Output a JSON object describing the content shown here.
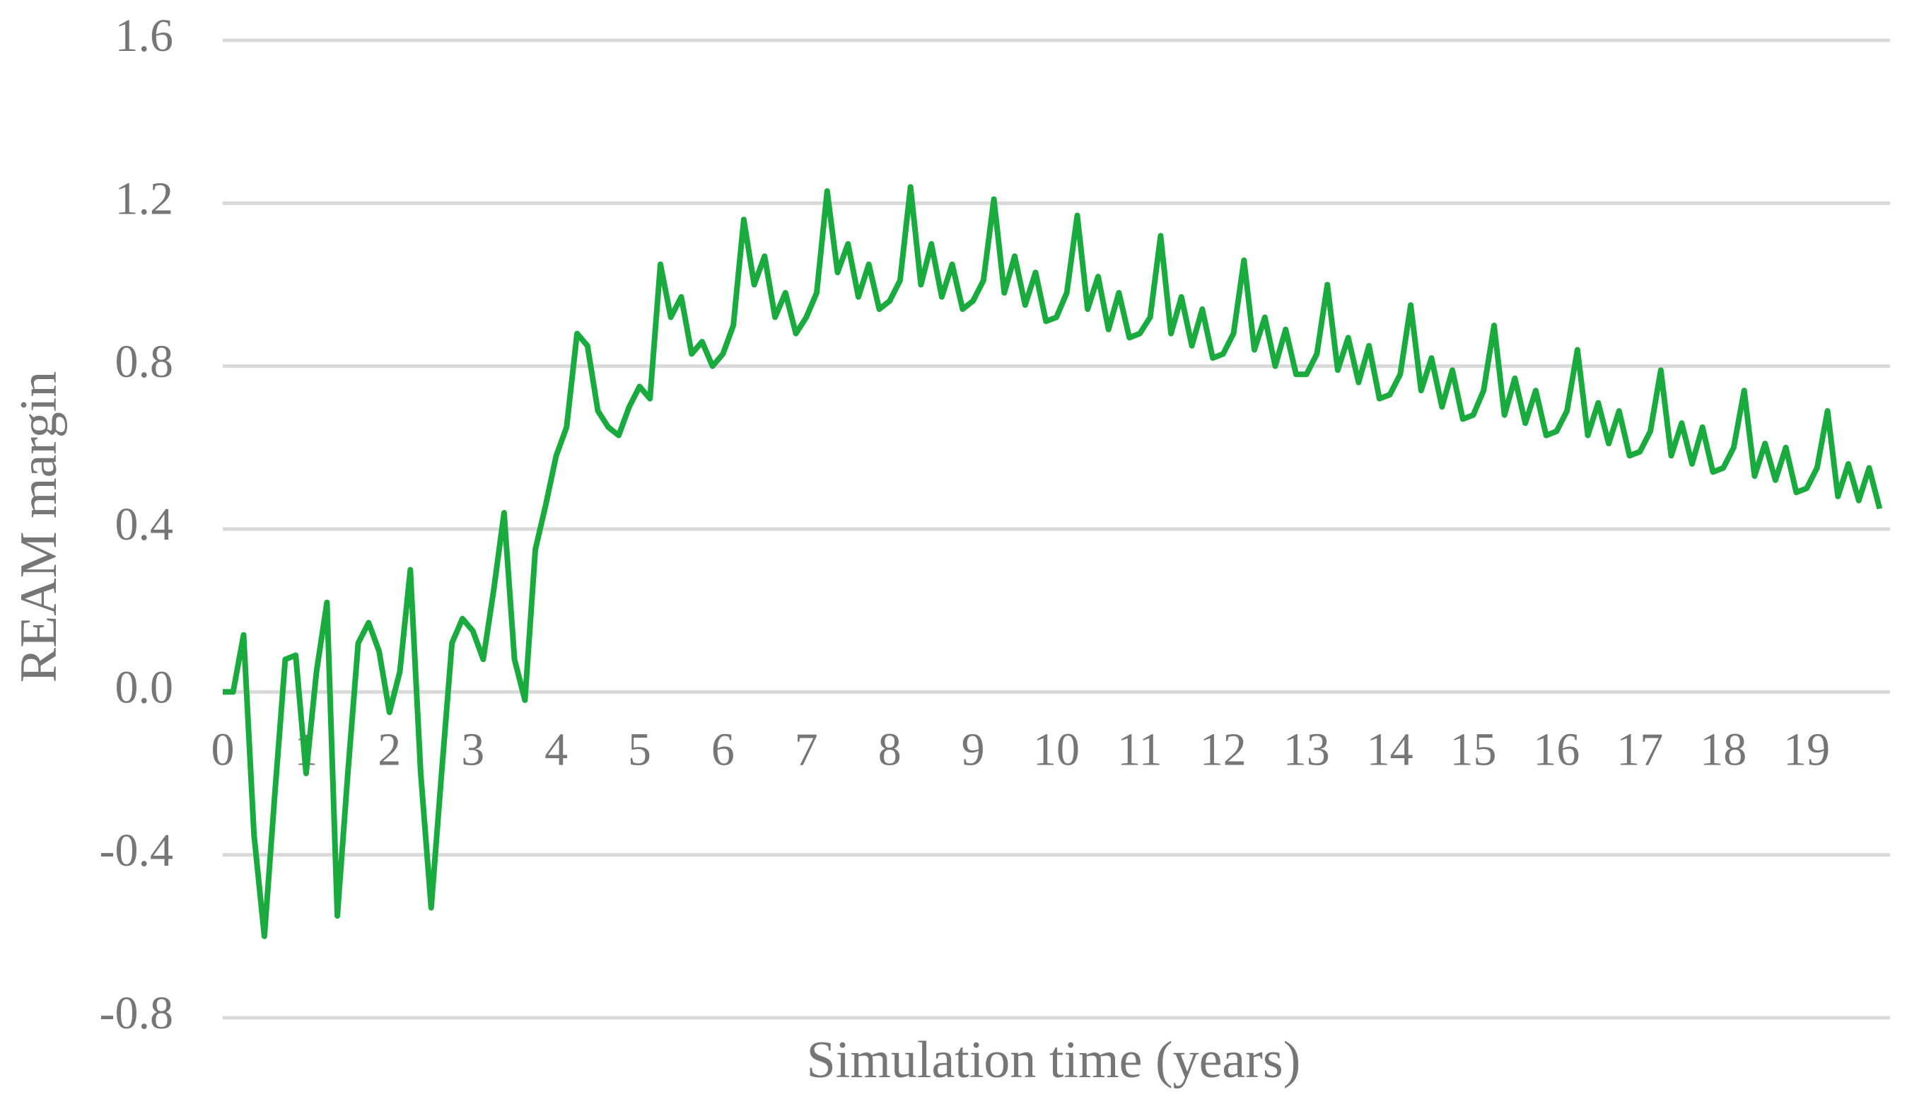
{
  "chart_data": {
    "type": "line",
    "xlabel": "Simulation time (years)",
    "ylabel": "REAM margin",
    "xlim": [
      0,
      20
    ],
    "ylim": [
      -0.8,
      1.6
    ],
    "xticks": [
      0,
      1,
      2,
      3,
      4,
      5,
      6,
      7,
      8,
      9,
      10,
      11,
      12,
      13,
      14,
      15,
      16,
      17,
      18,
      19
    ],
    "yticks": [
      {
        "value": -0.8,
        "label": "-0.8"
      },
      {
        "value": -0.4,
        "label": "-0.4"
      },
      {
        "value": 0,
        "label": "0.0"
      },
      {
        "value": 0.4,
        "label": "0.4"
      },
      {
        "value": 0.8,
        "label": "0.8"
      },
      {
        "value": 1.2,
        "label": "1.2"
      },
      {
        "value": 1.6,
        "label": "1.6"
      }
    ],
    "grid": true,
    "x": [
      0,
      0.125,
      0.25,
      0.375,
      0.5,
      0.625,
      0.75,
      0.875,
      1,
      1.125,
      1.25,
      1.375,
      1.5,
      1.625,
      1.75,
      1.875,
      2,
      2.125,
      2.25,
      2.375,
      2.5,
      2.625,
      2.75,
      2.875,
      3,
      3.125,
      3.25,
      3.375,
      3.5,
      3.625,
      3.75,
      3.875,
      4,
      4.125,
      4.25,
      4.375,
      4.5,
      4.625,
      4.75,
      4.875,
      5,
      5.125,
      5.25,
      5.375,
      5.5,
      5.625,
      5.75,
      5.875,
      6,
      6.125,
      6.25,
      6.375,
      6.5,
      6.625,
      6.75,
      6.875,
      7,
      7.125,
      7.25,
      7.375,
      7.5,
      7.625,
      7.75,
      7.875,
      8,
      8.125,
      8.25,
      8.375,
      8.5,
      8.625,
      8.75,
      8.875,
      9,
      9.125,
      9.25,
      9.375,
      9.5,
      9.625,
      9.75,
      9.875,
      10,
      10.125,
      10.25,
      10.375,
      10.5,
      10.625,
      10.75,
      10.875,
      11,
      11.125,
      11.25,
      11.375,
      11.5,
      11.625,
      11.75,
      11.875,
      12,
      12.125,
      12.25,
      12.375,
      12.5,
      12.625,
      12.75,
      12.875,
      13,
      13.125,
      13.25,
      13.375,
      13.5,
      13.625,
      13.75,
      13.875,
      14,
      14.125,
      14.25,
      14.375,
      14.5,
      14.625,
      14.75,
      14.875,
      15,
      15.125,
      15.25,
      15.375,
      15.5,
      15.625,
      15.75,
      15.875,
      16,
      16.125,
      16.25,
      16.375,
      16.5,
      16.625,
      16.75,
      16.875,
      17,
      17.125,
      17.25,
      17.375,
      17.5,
      17.625,
      17.75,
      17.875,
      18,
      18.125,
      18.25,
      18.375,
      18.5,
      18.625,
      18.75,
      18.875,
      19,
      19.125,
      19.25,
      19.375,
      19.5,
      19.625,
      19.75,
      19.875
    ],
    "series": [
      {
        "name": "REAM margin",
        "color": "#19ab3e",
        "values": [
          0,
          0,
          0.14,
          -0.35,
          -0.6,
          -0.25,
          0.08,
          0.09,
          -0.2,
          0.05,
          0.22,
          -0.55,
          -0.2,
          0.12,
          0.17,
          0.1,
          -0.05,
          0.05,
          0.3,
          -0.2,
          -0.53,
          -0.2,
          0.12,
          0.18,
          0.15,
          0.08,
          0.25,
          0.44,
          0.08,
          -0.02,
          0.35,
          0.46,
          0.58,
          0.65,
          0.88,
          0.85,
          0.69,
          0.65,
          0.63,
          0.7,
          0.75,
          0.72,
          1.05,
          0.92,
          0.97,
          0.83,
          0.86,
          0.8,
          0.83,
          0.9,
          1.16,
          1.0,
          1.07,
          0.92,
          0.98,
          0.88,
          0.92,
          0.98,
          1.23,
          1.03,
          1.1,
          0.97,
          1.05,
          0.94,
          0.96,
          1.01,
          1.24,
          1.0,
          1.1,
          0.97,
          1.05,
          0.94,
          0.96,
          1.01,
          1.21,
          0.98,
          1.07,
          0.95,
          1.03,
          0.91,
          0.92,
          0.98,
          1.17,
          0.94,
          1.02,
          0.89,
          0.98,
          0.87,
          0.88,
          0.92,
          1.12,
          0.88,
          0.97,
          0.85,
          0.94,
          0.82,
          0.83,
          0.88,
          1.06,
          0.84,
          0.92,
          0.8,
          0.89,
          0.78,
          0.78,
          0.83,
          1.0,
          0.79,
          0.87,
          0.76,
          0.85,
          0.72,
          0.73,
          0.78,
          0.95,
          0.74,
          0.82,
          0.7,
          0.79,
          0.67,
          0.68,
          0.74,
          0.9,
          0.68,
          0.77,
          0.66,
          0.74,
          0.63,
          0.64,
          0.69,
          0.84,
          0.63,
          0.71,
          0.61,
          0.69,
          0.58,
          0.59,
          0.64,
          0.79,
          0.58,
          0.66,
          0.56,
          0.65,
          0.54,
          0.55,
          0.6,
          0.74,
          0.53,
          0.61,
          0.52,
          0.6,
          0.49,
          0.5,
          0.55,
          0.69,
          0.48,
          0.56,
          0.47,
          0.55,
          0.45
        ]
      }
    ]
  }
}
